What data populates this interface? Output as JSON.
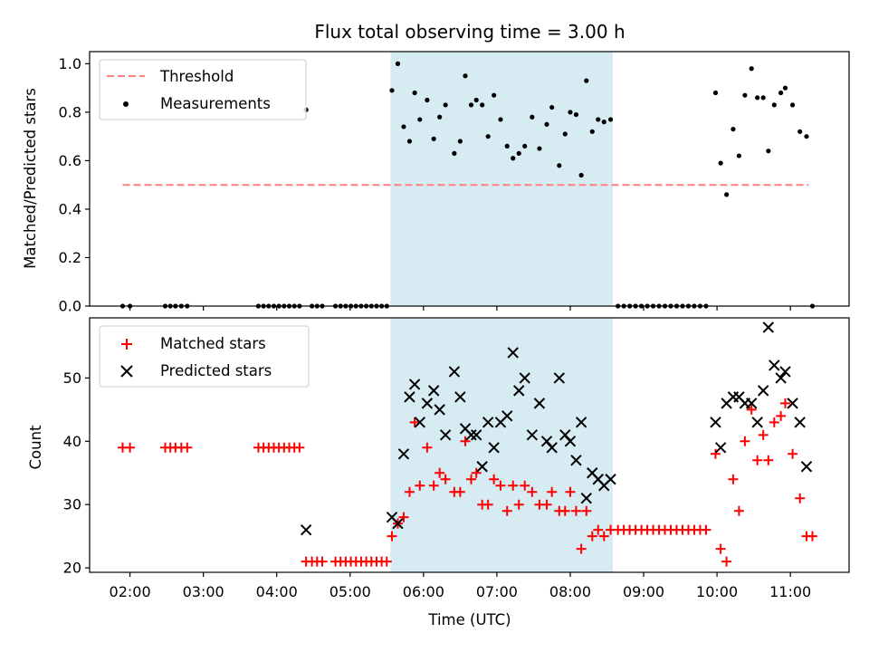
{
  "chart_data": [
    {
      "type": "scatter",
      "title": "Flux total observing time = 3.00 h",
      "ylabel": "Matched/Predicted stars",
      "xlabel": "",
      "ylim": [
        0,
        1.05
      ],
      "yticks": [
        "0.0",
        "0.2",
        "0.4",
        "0.6",
        "0.8",
        "1.0"
      ],
      "ytick_values": [
        0,
        0.2,
        0.4,
        0.6,
        0.8,
        1.0
      ],
      "shaded_region": {
        "x_start": 5.55,
        "x_end": 8.58,
        "color": "#add8e6"
      },
      "threshold": {
        "label": "Threshold",
        "value": 0.5,
        "x_start": 1.9,
        "x_end": 11.25,
        "color": "#ff7f7f"
      },
      "legend": {
        "position": "top-left",
        "entries": [
          "Threshold",
          "Measurements"
        ]
      },
      "series": [
        {
          "name": "Measurements",
          "x": [
            1.9,
            2.0,
            2.48,
            2.55,
            2.62,
            2.7,
            2.78,
            3.75,
            3.82,
            3.89,
            3.96,
            4.03,
            4.1,
            4.17,
            4.24,
            4.31,
            4.4,
            4.48,
            4.55,
            4.62,
            4.8,
            4.87,
            4.94,
            5.01,
            5.08,
            5.15,
            5.22,
            5.29,
            5.36,
            5.43,
            5.5,
            5.57,
            5.65,
            5.73,
            5.81,
            5.88,
            5.95,
            6.05,
            6.14,
            6.22,
            6.3,
            6.42,
            6.5,
            6.57,
            6.65,
            6.72,
            6.8,
            6.88,
            6.96,
            7.05,
            7.14,
            7.22,
            7.3,
            7.38,
            7.48,
            7.58,
            7.68,
            7.75,
            7.85,
            7.93,
            8.0,
            8.08,
            8.15,
            8.22,
            8.3,
            8.38,
            8.46,
            8.55,
            8.65,
            8.73,
            8.81,
            8.89,
            8.97,
            9.05,
            9.13,
            9.21,
            9.29,
            9.37,
            9.45,
            9.53,
            9.61,
            9.69,
            9.77,
            9.85,
            9.98,
            10.05,
            10.13,
            10.22,
            10.3,
            10.38,
            10.47,
            10.55,
            10.63,
            10.7,
            10.78,
            10.87,
            10.93,
            11.03,
            11.13,
            11.22,
            11.3
          ],
          "values": [
            0,
            0,
            0,
            0,
            0,
            0,
            0,
            0,
            0,
            0,
            0,
            0,
            0,
            0,
            0,
            0,
            0.81,
            0,
            0,
            0,
            0,
            0,
            0,
            0,
            0,
            0,
            0,
            0,
            0,
            0,
            0,
            0.89,
            1.0,
            0.74,
            0.68,
            0.88,
            0.77,
            0.85,
            0.69,
            0.78,
            0.83,
            0.63,
            0.68,
            0.95,
            0.83,
            0.85,
            0.83,
            0.7,
            0.87,
            0.77,
            0.66,
            0.61,
            0.63,
            0.66,
            0.78,
            0.65,
            0.75,
            0.82,
            0.58,
            0.71,
            0.8,
            0.79,
            0.54,
            0.93,
            0.72,
            0.77,
            0.76,
            0.77,
            0,
            0,
            0,
            0,
            0,
            0,
            0,
            0,
            0,
            0,
            0,
            0,
            0,
            0,
            0,
            0,
            0.88,
            0.59,
            0.46,
            0.73,
            0.62,
            0.87,
            0.98,
            0.86,
            0.86,
            0.64,
            0.83,
            0.88,
            0.9,
            0.83,
            0.72,
            0.7,
            0
          ]
        }
      ]
    },
    {
      "type": "scatter",
      "title": "",
      "ylabel": "Count",
      "xlabel": "Time (UTC)",
      "xlim": [
        1.45,
        11.8
      ],
      "ylim": [
        19.3,
        59.5
      ],
      "yticks": [
        "20",
        "30",
        "40",
        "50"
      ],
      "ytick_values": [
        20,
        30,
        40,
        50
      ],
      "xticks": [
        "02:00",
        "03:00",
        "04:00",
        "05:00",
        "06:00",
        "07:00",
        "08:00",
        "09:00",
        "10:00",
        "11:00"
      ],
      "xtick_values": [
        2,
        3,
        4,
        5,
        6,
        7,
        8,
        9,
        10,
        11
      ],
      "shaded_region": {
        "x_start": 5.55,
        "x_end": 8.58,
        "color": "#add8e6"
      },
      "legend": {
        "position": "top-left",
        "entries": [
          "Matched stars",
          "Predicted stars"
        ]
      },
      "series": [
        {
          "name": "Matched stars",
          "color": "#ff0000",
          "marker": "+",
          "x": [
            1.9,
            2.0,
            2.48,
            2.55,
            2.62,
            2.7,
            2.78,
            3.75,
            3.82,
            3.89,
            3.96,
            4.03,
            4.1,
            4.17,
            4.24,
            4.31,
            4.4,
            4.48,
            4.55,
            4.62,
            4.8,
            4.87,
            4.94,
            5.01,
            5.08,
            5.15,
            5.22,
            5.29,
            5.36,
            5.43,
            5.5,
            5.57,
            5.65,
            5.73,
            5.81,
            5.88,
            5.95,
            6.05,
            6.14,
            6.22,
            6.3,
            6.42,
            6.5,
            6.57,
            6.65,
            6.72,
            6.8,
            6.88,
            6.96,
            7.05,
            7.14,
            7.22,
            7.3,
            7.38,
            7.48,
            7.58,
            7.68,
            7.75,
            7.85,
            7.93,
            8.0,
            8.08,
            8.15,
            8.22,
            8.3,
            8.38,
            8.46,
            8.55,
            8.65,
            8.73,
            8.81,
            8.89,
            8.97,
            9.05,
            9.13,
            9.21,
            9.29,
            9.37,
            9.45,
            9.53,
            9.61,
            9.69,
            9.77,
            9.85,
            9.98,
            10.05,
            10.13,
            10.22,
            10.3,
            10.38,
            10.47,
            10.55,
            10.63,
            10.7,
            10.78,
            10.87,
            10.93,
            11.03,
            11.13,
            11.22,
            11.3
          ],
          "values": [
            39,
            39,
            39,
            39,
            39,
            39,
            39,
            39,
            39,
            39,
            39,
            39,
            39,
            39,
            39,
            39,
            21,
            21,
            21,
            21,
            21,
            21,
            21,
            21,
            21,
            21,
            21,
            21,
            21,
            21,
            21,
            25,
            27,
            28,
            32,
            43,
            33,
            39,
            33,
            35,
            34,
            32,
            32,
            40,
            34,
            35,
            30,
            30,
            34,
            33,
            29,
            33,
            30,
            33,
            32,
            30,
            30,
            32,
            29,
            29,
            32,
            29,
            23,
            29,
            25,
            26,
            25,
            26,
            26,
            26,
            26,
            26,
            26,
            26,
            26,
            26,
            26,
            26,
            26,
            26,
            26,
            26,
            26,
            26,
            38,
            23,
            21,
            34,
            29,
            40,
            45,
            37,
            41,
            37,
            43,
            44,
            46,
            38,
            31,
            25,
            25
          ]
        },
        {
          "name": "Predicted stars",
          "color": "#000000",
          "marker": "x",
          "x": [
            4.4,
            5.57,
            5.65,
            5.73,
            5.81,
            5.88,
            5.95,
            6.05,
            6.14,
            6.22,
            6.3,
            6.42,
            6.5,
            6.57,
            6.65,
            6.72,
            6.8,
            6.88,
            6.96,
            7.05,
            7.14,
            7.22,
            7.3,
            7.38,
            7.48,
            7.58,
            7.68,
            7.75,
            7.85,
            7.93,
            8.0,
            8.08,
            8.15,
            8.22,
            8.3,
            8.38,
            8.46,
            8.55,
            9.98,
            10.05,
            10.13,
            10.22,
            10.3,
            10.38,
            10.47,
            10.55,
            10.63,
            10.7,
            10.78,
            10.87,
            10.93,
            11.03,
            11.13,
            11.22
          ],
          "values": [
            26,
            28,
            27,
            38,
            47,
            49,
            43,
            46,
            48,
            45,
            41,
            51,
            47,
            42,
            41,
            41,
            36,
            43,
            39,
            43,
            44,
            54,
            48,
            50,
            41,
            46,
            40,
            39,
            50,
            41,
            40,
            37,
            43,
            31,
            35,
            34,
            33,
            34,
            43,
            39,
            46,
            47,
            47,
            46,
            46,
            43,
            48,
            58,
            52,
            50,
            51,
            46,
            43,
            36
          ]
        }
      ]
    }
  ]
}
